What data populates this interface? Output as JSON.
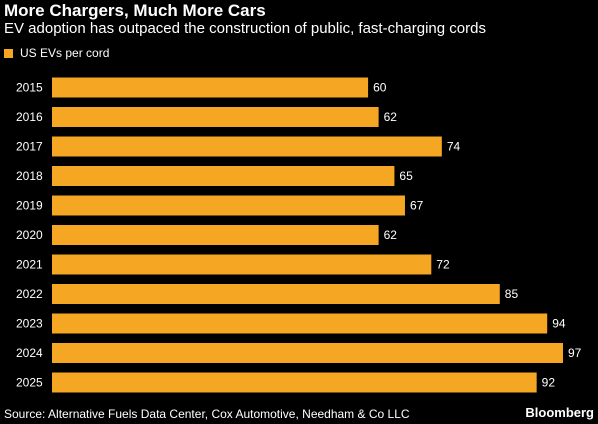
{
  "title": "More Chargers, Much More Cars",
  "subtitle": "EV adoption has outpaced the construction of public, fast-charging cords",
  "legend": {
    "label": "US EVs per cord",
    "color": "#f5a623"
  },
  "source": "Source: Alternative Fuels Data Center, Cox Automotive, Needham & Co LLC",
  "brand": "Bloomberg",
  "colors": {
    "bar": "#f5a623",
    "background": "#000000",
    "text": "#ffffff"
  },
  "chart_data": {
    "type": "bar",
    "orientation": "horizontal",
    "categories": [
      "2015",
      "2016",
      "2017",
      "2018",
      "2019",
      "2020",
      "2021",
      "2022",
      "2023",
      "2024",
      "2025"
    ],
    "series": [
      {
        "name": "US EVs per cord",
        "values": [
          60,
          62,
          74,
          65,
          67,
          62,
          72,
          85,
          94,
          97,
          92
        ]
      }
    ],
    "data_labels": [
      "60",
      "62",
      "74",
      "65",
      "67",
      "62",
      "72",
      "85",
      "94",
      "97",
      "92"
    ],
    "title": "More Chargers, Much More Cars",
    "subtitle": "EV adoption has outpaced the construction of public, fast-charging cords",
    "xlim": [
      0,
      97
    ],
    "grid": false,
    "legend_position": "top-left"
  }
}
